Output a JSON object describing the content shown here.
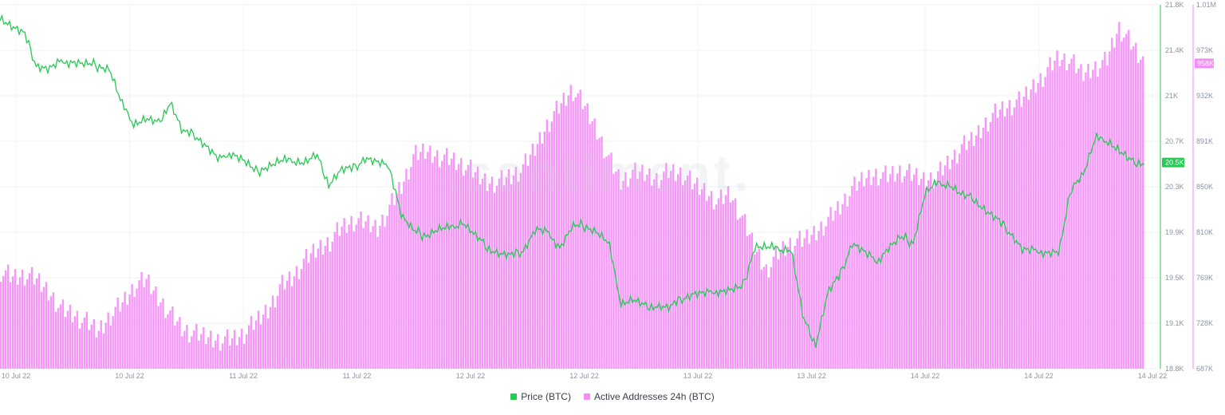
{
  "chart_data": {
    "type": "bar+line",
    "watermark": ".santiment.",
    "legend_placement": "bottom-center",
    "x_tick_labels": [
      "10 Jul 22",
      "10 Jul 22",
      "11 Jul 22",
      "11 Jul 22",
      "12 Jul 22",
      "12 Jul 22",
      "13 Jul 22",
      "13 Jul 22",
      "14 Jul 22",
      "14 Jul 22",
      "14 Jul 22"
    ],
    "price_axis": {
      "ticks": [
        "21.8K",
        "21.4K",
        "21K",
        "20.7K",
        "20.3K",
        "19.9K",
        "19.5K",
        "19.1K",
        "18.8K"
      ],
      "ylim": [
        18800,
        21800
      ],
      "current_label": "20.5K",
      "color": "#26c953"
    },
    "addresses_axis": {
      "ticks": [
        "1.01M",
        "973K",
        "932K",
        "891K",
        "850K",
        "810K",
        "769K",
        "728K",
        "687K"
      ],
      "ylim": [
        687000,
        1010000
      ],
      "current_label": "958K",
      "color": "#f38ef6"
    },
    "series": [
      {
        "name": "Price (BTC)",
        "kind": "line",
        "color": "#26c953",
        "values": [
          21700,
          21620,
          21560,
          21300,
          21270,
          21330,
          21330,
          21310,
          21300,
          21270,
          20980,
          20820,
          20860,
          20820,
          21000,
          20750,
          20730,
          20630,
          20520,
          20580,
          20520,
          20420,
          20470,
          20510,
          20520,
          20500,
          20560,
          20320,
          20440,
          20450,
          20540,
          20500,
          20460,
          20060,
          19930,
          19900,
          19950,
          19960,
          20010,
          19900,
          19800,
          19750,
          19730,
          19780,
          19950,
          19920,
          19800,
          19970,
          19980,
          19930,
          19830,
          19340,
          19370,
          19310,
          19320,
          19300,
          19380,
          19420,
          19420,
          19440,
          19450,
          19470,
          19810,
          19800,
          19790,
          19780,
          19200,
          19000,
          19430,
          19570,
          19840,
          19760,
          19680,
          19800,
          19880,
          19840,
          20250,
          20330,
          20320,
          20230,
          20200,
          20100,
          20020,
          19920,
          19780,
          19770,
          19760,
          19760,
          20300,
          20410,
          20700,
          20680,
          20590,
          20500,
          20500
        ]
      },
      {
        "name": "Active Addresses 24h (BTC)",
        "kind": "bar",
        "color": "#f38ef6",
        "values": [
          774000,
          768000,
          770000,
          765000,
          755000,
          740000,
          735000,
          728000,
          720000,
          735000,
          745000,
          760000,
          765000,
          750000,
          735000,
          722000,
          717000,
          715000,
          713000,
          713000,
          718000,
          728000,
          740000,
          760000,
          768000,
          782000,
          793000,
          800000,
          812000,
          818000,
          816000,
          812000,
          830000,
          850000,
          875000,
          880000,
          876000,
          873000,
          868000,
          860000,
          853000,
          853000,
          858000,
          865000,
          883000,
          905000,
          920000,
          935000,
          920000,
          900000,
          875000,
          853000,
          860000,
          860000,
          856000,
          862000,
          860000,
          850000,
          845000,
          835000,
          843000,
          820000,
          795000,
          775000,
          790000,
          798000,
          800000,
          808000,
          818000,
          830000,
          845000,
          855000,
          860000,
          858000,
          862000,
          858000,
          855000,
          858000,
          870000,
          882000,
          890000,
          905000,
          915000,
          920000,
          924000,
          938000,
          950000,
          963000,
          960000,
          948000,
          955000,
          960000,
          990000,
          975000,
          958000
        ]
      }
    ],
    "grid": true
  }
}
